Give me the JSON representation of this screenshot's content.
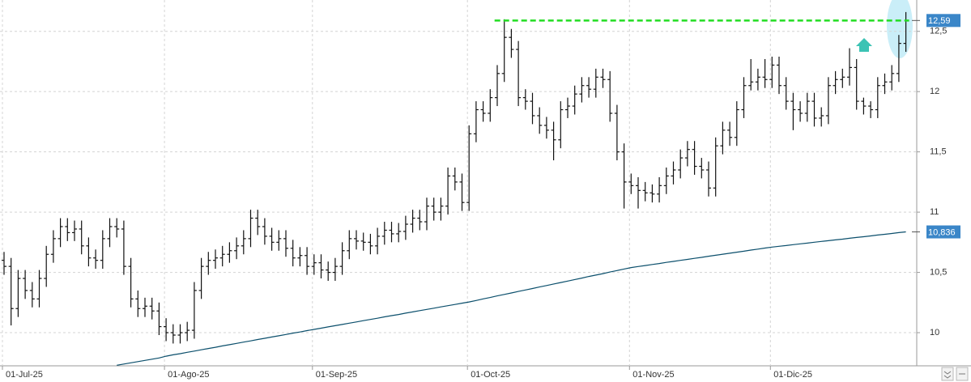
{
  "chart_data": {
    "type": "ohlc",
    "categories": [
      "01-Jul-25",
      null,
      null,
      null,
      null,
      null,
      null,
      null,
      null,
      null,
      null,
      null,
      null,
      null,
      null,
      null,
      null,
      null,
      null,
      null,
      null,
      null,
      null,
      "01-Ago-25",
      null,
      null,
      null,
      null,
      null,
      null,
      null,
      null,
      null,
      null,
      null,
      null,
      null,
      null,
      null,
      null,
      null,
      null,
      null,
      null,
      "01-Sep-25",
      null,
      null,
      null,
      null,
      null,
      null,
      null,
      null,
      null,
      null,
      null,
      null,
      null,
      null,
      null,
      null,
      null,
      null,
      null,
      null,
      null,
      "01-Oct-25",
      null,
      null,
      null,
      null,
      null,
      null,
      null,
      null,
      null,
      null,
      null,
      null,
      null,
      null,
      null,
      null,
      null,
      null,
      null,
      null,
      null,
      null,
      "01-Nov-25",
      null,
      null,
      null,
      null,
      null,
      null,
      null,
      null,
      null,
      null,
      null,
      null,
      null,
      null,
      null,
      null,
      null,
      null,
      null,
      "01-Dic-25",
      null,
      null,
      null,
      null,
      null,
      null,
      null,
      null,
      null,
      null,
      null,
      null,
      null,
      null,
      null,
      null,
      null,
      null,
      null
    ],
    "open": [
      10.6,
      10.55,
      10.2,
      10.45,
      10.35,
      10.28,
      10.45,
      10.65,
      10.78,
      10.88,
      10.83,
      10.86,
      10.72,
      10.62,
      10.6,
      10.78,
      10.88,
      10.86,
      10.55,
      10.28,
      10.2,
      10.22,
      10.18,
      10.05,
      10.0,
      9.98,
      10.0,
      10.02,
      10.35,
      10.55,
      10.6,
      10.62,
      10.65,
      10.68,
      10.72,
      10.78,
      10.95,
      10.88,
      10.8,
      10.75,
      10.78,
      10.7,
      10.62,
      10.64,
      10.55,
      10.58,
      10.52,
      10.5,
      10.55,
      10.68,
      10.78,
      10.76,
      10.75,
      10.72,
      10.8,
      10.85,
      10.82,
      10.84,
      10.9,
      10.95,
      10.92,
      11.05,
      11.0,
      11.05,
      11.3,
      11.25,
      11.08,
      11.65,
      11.85,
      11.82,
      11.95,
      12.15,
      12.45,
      12.35,
      11.95,
      11.92,
      11.8,
      11.72,
      11.68,
      11.6,
      11.85,
      11.88,
      11.98,
      12.05,
      12.02,
      12.12,
      12.1,
      11.82,
      11.5,
      11.25,
      11.22,
      11.18,
      11.16,
      11.15,
      11.22,
      11.3,
      11.35,
      11.45,
      11.52,
      11.38,
      11.35,
      11.2,
      11.55,
      11.68,
      11.62,
      11.85,
      12.05,
      12.08,
      12.12,
      12.1,
      12.22,
      12.05,
      11.92,
      11.85,
      11.82,
      11.92,
      11.78,
      11.8,
      12.05,
      12.1,
      12.12,
      12.2,
      11.92,
      11.88,
      11.85,
      12.05,
      12.08,
      12.15,
      12.4
    ],
    "high": [
      10.67,
      10.62,
      10.52,
      10.52,
      10.42,
      10.52,
      10.72,
      10.85,
      10.95,
      10.95,
      10.93,
      10.93,
      10.79,
      10.69,
      10.85,
      10.95,
      10.95,
      10.93,
      10.62,
      10.35,
      10.29,
      10.29,
      10.25,
      10.12,
      10.07,
      10.07,
      10.09,
      10.42,
      10.62,
      10.67,
      10.69,
      10.72,
      10.75,
      10.79,
      10.85,
      11.02,
      11.02,
      10.95,
      10.87,
      10.85,
      10.85,
      10.77,
      10.71,
      10.71,
      10.65,
      10.65,
      10.59,
      10.62,
      10.75,
      10.85,
      10.85,
      10.83,
      10.82,
      10.87,
      10.92,
      10.92,
      10.91,
      10.97,
      11.02,
      11.02,
      11.12,
      11.12,
      11.12,
      11.37,
      11.37,
      11.32,
      11.72,
      11.92,
      11.92,
      12.02,
      12.22,
      12.6,
      12.52,
      12.42,
      12.02,
      11.99,
      11.87,
      11.79,
      11.75,
      11.92,
      11.95,
      12.05,
      12.12,
      12.12,
      12.19,
      12.19,
      12.17,
      11.89,
      11.57,
      11.32,
      11.29,
      11.25,
      11.23,
      11.29,
      11.37,
      11.42,
      11.52,
      11.59,
      11.59,
      11.45,
      11.42,
      11.62,
      11.75,
      11.75,
      11.92,
      12.12,
      12.27,
      12.19,
      12.27,
      12.29,
      12.29,
      12.12,
      11.99,
      11.92,
      11.99,
      11.99,
      11.87,
      12.12,
      12.17,
      12.19,
      12.36,
      12.27,
      11.95,
      11.92,
      12.12,
      12.15,
      12.22,
      12.47,
      12.66
    ],
    "low": [
      10.48,
      10.06,
      10.13,
      10.28,
      10.21,
      10.21,
      10.38,
      10.58,
      10.71,
      10.76,
      10.76,
      10.65,
      10.55,
      10.53,
      10.53,
      10.71,
      10.79,
      10.48,
      10.21,
      10.13,
      10.13,
      10.11,
      9.98,
      9.93,
      9.91,
      9.91,
      9.93,
      9.95,
      10.28,
      10.48,
      10.53,
      10.55,
      10.58,
      10.61,
      10.65,
      10.71,
      10.81,
      10.73,
      10.68,
      10.68,
      10.63,
      10.55,
      10.55,
      10.48,
      10.48,
      10.45,
      10.43,
      10.43,
      10.48,
      10.61,
      10.69,
      10.68,
      10.65,
      10.65,
      10.73,
      10.75,
      10.75,
      10.77,
      10.83,
      10.85,
      10.85,
      10.93,
      10.93,
      10.98,
      11.18,
      11.01,
      11.01,
      11.58,
      11.75,
      11.75,
      11.88,
      12.08,
      12.28,
      11.88,
      11.85,
      11.73,
      11.65,
      11.61,
      11.43,
      11.53,
      11.78,
      11.81,
      11.91,
      11.95,
      11.95,
      12.03,
      11.75,
      11.43,
      11.03,
      11.15,
      11.03,
      11.09,
      11.08,
      11.08,
      11.15,
      11.23,
      11.28,
      11.38,
      11.31,
      11.28,
      11.13,
      11.13,
      11.48,
      11.55,
      11.55,
      11.78,
      12.01,
      12.01,
      12.03,
      12.03,
      11.98,
      11.85,
      11.68,
      11.75,
      11.75,
      11.71,
      11.71,
      11.73,
      11.98,
      12.03,
      12.05,
      11.85,
      11.81,
      11.78,
      11.78,
      11.98,
      12.01,
      12.08,
      12.33
    ],
    "close": [
      10.55,
      10.2,
      10.45,
      10.35,
      10.28,
      10.45,
      10.65,
      10.78,
      10.88,
      10.83,
      10.86,
      10.72,
      10.62,
      10.6,
      10.78,
      10.88,
      10.86,
      10.55,
      10.28,
      10.2,
      10.22,
      10.18,
      10.05,
      10.0,
      9.98,
      10.0,
      10.02,
      10.35,
      10.55,
      10.6,
      10.62,
      10.65,
      10.68,
      10.72,
      10.78,
      10.95,
      10.88,
      10.8,
      10.75,
      10.78,
      10.7,
      10.62,
      10.64,
      10.55,
      10.58,
      10.52,
      10.5,
      10.55,
      10.68,
      10.78,
      10.76,
      10.75,
      10.72,
      10.8,
      10.85,
      10.82,
      10.84,
      10.9,
      10.95,
      10.92,
      11.05,
      11.0,
      11.05,
      11.3,
      11.25,
      11.08,
      11.65,
      11.85,
      11.82,
      11.95,
      12.15,
      12.45,
      12.35,
      11.95,
      11.92,
      11.8,
      11.72,
      11.68,
      11.6,
      11.85,
      11.88,
      11.98,
      12.05,
      12.02,
      12.12,
      12.1,
      11.82,
      11.5,
      11.25,
      11.22,
      11.18,
      11.16,
      11.15,
      11.22,
      11.3,
      11.35,
      11.45,
      11.52,
      11.38,
      11.35,
      11.2,
      11.55,
      11.68,
      11.62,
      11.85,
      12.05,
      12.08,
      12.12,
      12.1,
      12.22,
      12.05,
      11.92,
      11.85,
      11.82,
      11.92,
      11.78,
      11.8,
      12.05,
      12.1,
      12.12,
      12.2,
      11.92,
      11.88,
      11.85,
      12.05,
      12.08,
      12.15,
      12.4,
      12.59
    ],
    "color": "#111111",
    "moving_average": {
      "color": "#0b4f6c",
      "values": [
        null,
        null,
        null,
        null,
        null,
        null,
        null,
        null,
        null,
        null,
        null,
        null,
        null,
        null,
        null,
        null,
        9.73,
        9.74,
        9.75,
        9.76,
        9.77,
        9.78,
        9.79,
        9.805,
        9.816,
        9.826,
        9.837,
        9.847,
        9.858,
        9.869,
        9.879,
        9.89,
        9.9,
        9.911,
        9.922,
        9.932,
        9.943,
        9.953,
        9.964,
        9.974,
        9.985,
        9.996,
        10.006,
        10.017,
        10.027,
        10.037,
        10.048,
        10.058,
        10.068,
        10.079,
        10.089,
        10.1,
        10.11,
        10.12,
        10.131,
        10.141,
        10.151,
        10.162,
        10.172,
        10.183,
        10.193,
        10.203,
        10.214,
        10.224,
        10.234,
        10.245,
        10.255,
        10.267,
        10.28,
        10.292,
        10.305,
        10.317,
        10.329,
        10.342,
        10.354,
        10.366,
        10.379,
        10.391,
        10.404,
        10.416,
        10.428,
        10.441,
        10.453,
        10.466,
        10.478,
        10.49,
        10.503,
        10.515,
        10.528,
        10.54,
        10.549,
        10.557,
        10.566,
        10.574,
        10.583,
        10.591,
        10.6,
        10.608,
        10.617,
        10.625,
        10.634,
        10.642,
        10.651,
        10.659,
        10.668,
        10.676,
        10.685,
        10.693,
        10.702,
        10.71,
        10.717,
        10.723,
        10.73,
        10.737,
        10.743,
        10.75,
        10.757,
        10.763,
        10.77,
        10.776,
        10.783,
        10.79,
        10.796,
        10.803,
        10.81,
        10.816,
        10.823,
        10.83,
        10.836
      ]
    },
    "ylim": [
      9.725,
      12.76
    ],
    "yticks": [
      10,
      {
        "value": 10.5,
        "label": "10,5"
      },
      11,
      {
        "value": 11.5,
        "label": "11,5"
      },
      12,
      {
        "value": 12.5,
        "label": "12,5"
      }
    ],
    "grid": true,
    "resistance": {
      "value": 12.59,
      "color": "#22dd22"
    },
    "price_tags": [
      {
        "value": 12.59,
        "label": "12,59",
        "color": "#3a86c8"
      },
      {
        "value": 10.836,
        "label": "10,836",
        "color": "#3a86c8"
      }
    ]
  }
}
